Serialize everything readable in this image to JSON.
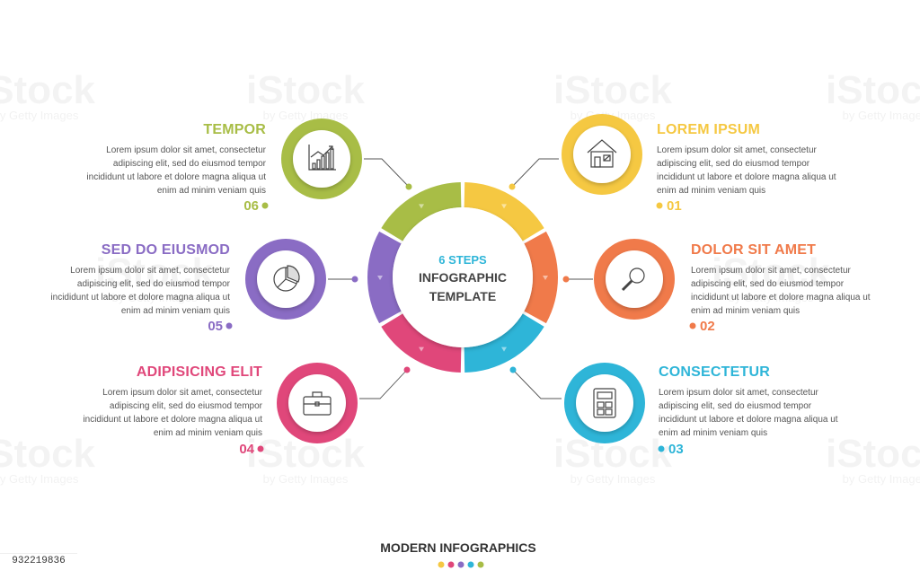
{
  "center": {
    "line1": "6 STEPS",
    "line2": "INFOGRAPHIC",
    "line3": "TEMPLATE"
  },
  "steps": [
    {
      "number": "01",
      "title": "LOREM IPSUM",
      "lines": [
        "Lorem ipsum dolor sit amet, consectetur",
        "adipiscing elit, sed do eiusmod tempor",
        "incididunt ut labore et dolore magna aliqua ut",
        "enim ad minim veniam quis"
      ],
      "color": "#f5c842",
      "icon": "house-icon"
    },
    {
      "number": "02",
      "title": "DOLOR SIT AMET",
      "lines": [
        "Lorem ipsum dolor sit amet, consectetur",
        "adipiscing elit, sed do eiusmod tempor",
        "incididunt ut labore et dolore magna aliqua ut",
        "enim ad minim veniam quis"
      ],
      "color": "#f07a4a",
      "icon": "magnifier-icon"
    },
    {
      "number": "03",
      "title": "CONSECTETUR",
      "lines": [
        "Lorem ipsum dolor sit amet, consectetur",
        "adipiscing elit, sed do eiusmod tempor",
        "incididunt ut labore et dolore magna aliqua ut",
        "enim ad minim veniam quis"
      ],
      "color": "#2eb5d8",
      "icon": "calculator-icon"
    },
    {
      "number": "04",
      "title": "ADIPISICING ELIT",
      "lines": [
        "Lorem ipsum dolor sit amet, consectetur",
        "adipiscing elit, sed do eiusmod tempor",
        "incididunt ut labore et dolore magna aliqua ut",
        "enim ad minim veniam quis"
      ],
      "color": "#e0477a",
      "icon": "briefcase-icon"
    },
    {
      "number": "05",
      "title": "SED DO EIUSMOD",
      "lines": [
        "Lorem ipsum dolor sit amet, consectetur",
        "adipiscing elit, sed do eiusmod tempor",
        "incididunt ut labore et dolore magna aliqua ut",
        "enim ad minim veniam quis"
      ],
      "color": "#8a6cc4",
      "icon": "pie-chart-icon"
    },
    {
      "number": "06",
      "title": "TEMPOR",
      "lines": [
        "Lorem ipsum dolor sit amet, consectetur",
        "adipiscing elit, sed do eiusmod tempor",
        "incididunt ut labore et dolore magna aliqua ut",
        "enim ad minim veniam quis"
      ],
      "color": "#a8bd46",
      "icon": "bar-chart-icon"
    }
  ],
  "footer": {
    "title": "MODERN INFOGRAPHICS",
    "dot_colors": [
      "#f5c842",
      "#e0477a",
      "#8a6cc4",
      "#2eb5d8",
      "#a8bd46"
    ]
  },
  "watermark": {
    "brand": "iStock",
    "credit": "by Getty Images"
  },
  "stock_id": "932219836"
}
